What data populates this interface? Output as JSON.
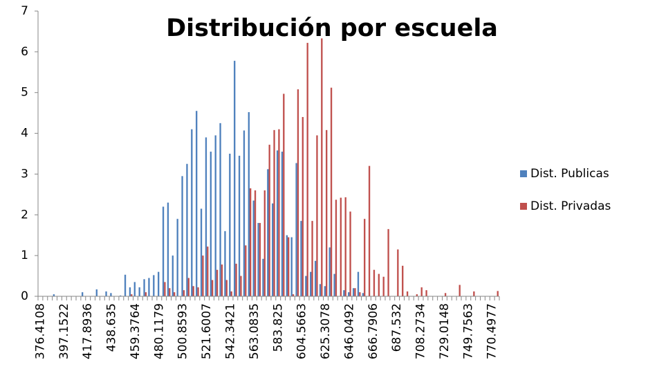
{
  "chart_data": {
    "type": "bar",
    "title": "Distribución por escuela",
    "categories": [
      "376.4108",
      null,
      null,
      null,
      null,
      "397.1522",
      null,
      null,
      null,
      null,
      "417.8936",
      null,
      null,
      null,
      null,
      "438.635",
      null,
      null,
      null,
      null,
      "459.3764",
      null,
      null,
      null,
      null,
      "480.1179",
      null,
      null,
      null,
      null,
      "500.8593",
      null,
      null,
      null,
      null,
      "521.6007",
      null,
      null,
      null,
      null,
      "542.3421",
      null,
      null,
      null,
      null,
      "563.0835",
      null,
      null,
      null,
      null,
      "583.825",
      null,
      null,
      null,
      null,
      "604.5663",
      null,
      null,
      null,
      null,
      "625.3078",
      null,
      null,
      null,
      null,
      "646.0492",
      null,
      null,
      null,
      null,
      "666.7906",
      null,
      null,
      null,
      null,
      "687.532",
      null,
      null,
      null,
      null,
      "708.2734",
      null,
      null,
      null,
      null,
      "729.0148",
      null,
      null,
      null,
      null,
      "749.7563",
      null,
      null,
      null,
      null,
      "770.4977",
      null
    ],
    "series": [
      {
        "name": "Dist. Publicas",
        "color": "#4f81bd",
        "values": [
          0,
          0,
          0,
          0.05,
          0,
          0,
          0,
          0,
          0,
          0.1,
          0,
          0,
          0.17,
          0,
          0.12,
          0.08,
          0,
          0.02,
          0.53,
          0.22,
          0.35,
          0.22,
          0.42,
          0.45,
          0.52,
          0.6,
          2.2,
          2.3,
          1.0,
          1.9,
          2.95,
          3.25,
          4.1,
          4.55,
          2.15,
          3.9,
          3.55,
          3.95,
          4.25,
          1.6,
          3.5,
          5.78,
          3.45,
          4.07,
          4.52,
          2.35,
          1.8,
          0.92,
          3.12,
          2.28,
          3.58,
          3.55,
          1.5,
          1.45,
          3.27,
          1.85,
          0.5,
          0.6,
          0.87,
          0.3,
          0.25,
          1.2,
          0.55,
          0,
          0.15,
          0.1,
          0.2,
          0.6,
          0.08,
          0,
          0,
          0,
          0,
          0,
          0,
          0,
          0,
          0,
          0,
          0,
          0,
          0,
          0,
          0,
          0,
          0,
          0,
          0,
          0,
          0,
          0,
          0,
          0,
          0,
          0,
          0,
          0
        ]
      },
      {
        "name": "Dist. Privadas",
        "color": "#c0504d",
        "values": [
          0,
          0,
          0,
          0,
          0,
          0,
          0,
          0,
          0,
          0,
          0,
          0,
          0,
          0,
          0,
          0,
          0,
          0,
          0,
          0.05,
          0,
          0,
          0.1,
          0,
          0,
          0,
          0.35,
          0.2,
          0.1,
          0,
          0.15,
          0.45,
          0.25,
          0.22,
          1.0,
          1.22,
          0.4,
          0.65,
          0.78,
          0.4,
          0.12,
          0.8,
          0.5,
          1.25,
          2.65,
          2.6,
          1.8,
          2.6,
          3.72,
          4.08,
          4.1,
          4.97,
          1.45,
          0.05,
          5.08,
          4.4,
          6.22,
          1.85,
          3.95,
          6.33,
          4.08,
          5.12,
          2.37,
          2.42,
          2.43,
          2.08,
          0.2,
          0.1,
          1.9,
          3.2,
          0.65,
          0.55,
          0.48,
          1.65,
          0,
          1.15,
          0.75,
          0.12,
          0,
          0.05,
          0.22,
          0.15,
          0,
          0,
          0,
          0.08,
          0,
          0,
          0.28,
          0,
          0,
          0.12,
          0,
          0,
          0,
          0,
          0.13
        ]
      }
    ],
    "ylim": [
      0,
      7
    ],
    "yticks": [
      0,
      1,
      2,
      3,
      4,
      5,
      6,
      7
    ],
    "grid": false,
    "legend": "right"
  }
}
